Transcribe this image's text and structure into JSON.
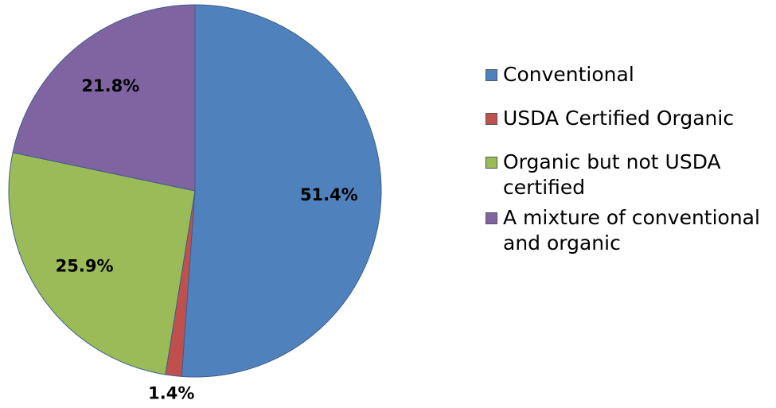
{
  "chart_data": {
    "type": "pie",
    "categories": [
      "Conventional",
      "USDA Certified Organic",
      "Organic but not USDA certified",
      "A mixture of conventional and organic"
    ],
    "values": [
      51.4,
      1.4,
      25.9,
      21.8
    ],
    "value_labels": [
      "51.4%",
      "1.4%",
      "25.9%",
      "21.8%"
    ],
    "colors": [
      "#4f81bd",
      "#c0504d",
      "#9bbb59",
      "#8064a2"
    ],
    "legend": "right"
  }
}
